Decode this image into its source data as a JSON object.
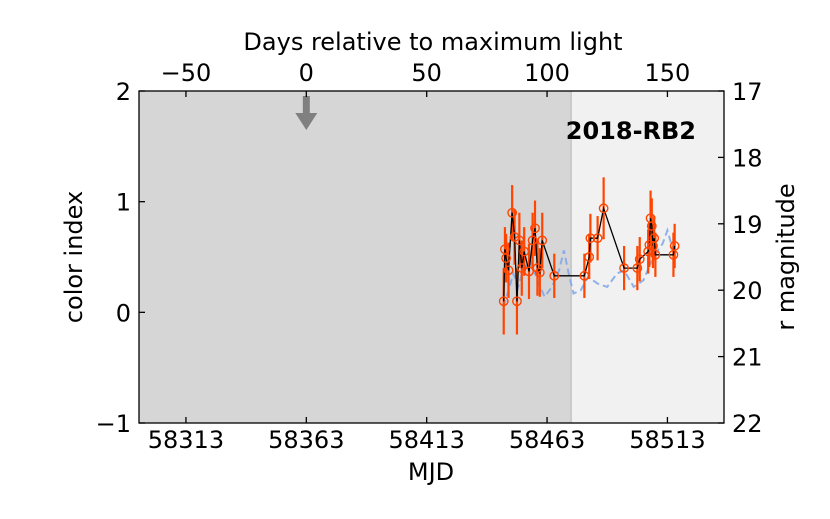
{
  "chart_data": {
    "type": "scatter",
    "title": "2018-RB2",
    "xlabel": "MJD",
    "ylabel": "color index",
    "top_xlabel": "Days relative to maximum light",
    "right_ylabel": "r magnitude",
    "xlim": [
      58293.5,
      58536.5
    ],
    "ylim": [
      -1,
      2
    ],
    "right_ylim": [
      22,
      17
    ],
    "top_xlim": [
      -69.5,
      173.5
    ],
    "x_ticks": [
      58313,
      58363,
      58413,
      58463,
      58513
    ],
    "y_ticks": [
      -1,
      0,
      1,
      2
    ],
    "right_y_ticks": [
      17,
      18,
      19,
      20,
      21,
      22
    ],
    "top_x_ticks": [
      -50,
      0,
      50,
      100,
      150
    ],
    "maximum_light_mjd": 58363,
    "shaded_region_end_mjd": 58473,
    "shade_colors": {
      "dark": "#d6d6d6",
      "light": "#f1f1f1"
    },
    "series": [
      {
        "style": "markers with error bars joined by line",
        "marker_color": "#ff4500",
        "line_color": "#000000",
        "points": [
          {
            "x": 58445.0,
            "y": 0.1,
            "err": 0.3
          },
          {
            "x": 58445.5,
            "y": 0.57,
            "err": 0.2
          },
          {
            "x": 58446.0,
            "y": 0.49,
            "err": 0.22
          },
          {
            "x": 58447.0,
            "y": 0.38,
            "err": 0.25
          },
          {
            "x": 58448.5,
            "y": 0.9,
            "err": 0.25
          },
          {
            "x": 58449.5,
            "y": 0.68,
            "err": 0.25
          },
          {
            "x": 58450.5,
            "y": 0.1,
            "err": 0.3
          },
          {
            "x": 58451.5,
            "y": 0.65,
            "err": 0.25
          },
          {
            "x": 58452.5,
            "y": 0.4,
            "err": 0.25
          },
          {
            "x": 58453.5,
            "y": 0.55,
            "err": 0.22
          },
          {
            "x": 58455.5,
            "y": 0.37,
            "err": 0.25
          },
          {
            "x": 58457.0,
            "y": 0.65,
            "err": 0.25
          },
          {
            "x": 58458.0,
            "y": 0.76,
            "err": 0.25
          },
          {
            "x": 58459.0,
            "y": 0.4,
            "err": 0.25
          },
          {
            "x": 58460.0,
            "y": 0.36,
            "err": 0.22
          },
          {
            "x": 58461.0,
            "y": 0.65,
            "err": 0.25
          },
          {
            "x": 58466.0,
            "y": 0.33,
            "err": 0.2
          },
          {
            "x": 58478.5,
            "y": 0.33,
            "err": 0.2
          },
          {
            "x": 58480.5,
            "y": 0.5,
            "err": 0.2
          },
          {
            "x": 58481.0,
            "y": 0.67,
            "err": 0.22
          },
          {
            "x": 58484.0,
            "y": 0.67,
            "err": 0.2
          },
          {
            "x": 58486.5,
            "y": 0.94,
            "err": 0.28
          },
          {
            "x": 58495.0,
            "y": 0.4,
            "err": 0.2
          },
          {
            "x": 58500.5,
            "y": 0.4,
            "err": 0.2
          },
          {
            "x": 58501.5,
            "y": 0.48,
            "err": 0.2
          },
          {
            "x": 58505.0,
            "y": 0.55,
            "err": 0.2
          },
          {
            "x": 58505.5,
            "y": 0.61,
            "err": 0.2
          },
          {
            "x": 58506.0,
            "y": 0.85,
            "err": 0.25
          },
          {
            "x": 58506.5,
            "y": 0.78,
            "err": 0.25
          },
          {
            "x": 58507.0,
            "y": 0.6,
            "err": 0.2
          },
          {
            "x": 58507.5,
            "y": 0.67,
            "err": 0.2
          },
          {
            "x": 58508.0,
            "y": 0.52,
            "err": 0.2
          },
          {
            "x": 58515.5,
            "y": 0.52,
            "err": 0.2
          },
          {
            "x": 58516.0,
            "y": 0.6,
            "err": 0.2
          }
        ]
      },
      {
        "style": "dashed",
        "color": "#7ea6ea",
        "axis": "right",
        "points": [
          {
            "x": 58445.0,
            "y": 20.25
          },
          {
            "x": 58447.0,
            "y": 20.0
          },
          {
            "x": 58449.0,
            "y": 19.75
          },
          {
            "x": 58451.0,
            "y": 19.95
          },
          {
            "x": 58453.0,
            "y": 19.7
          },
          {
            "x": 58456.0,
            "y": 19.55
          },
          {
            "x": 58459.0,
            "y": 19.85
          },
          {
            "x": 58462.0,
            "y": 20.1
          },
          {
            "x": 58465.0,
            "y": 19.95
          },
          {
            "x": 58468.0,
            "y": 19.7
          },
          {
            "x": 58470.0,
            "y": 19.4
          },
          {
            "x": 58472.0,
            "y": 19.75
          },
          {
            "x": 58474.0,
            "y": 20.05
          },
          {
            "x": 58477.0,
            "y": 20.0
          },
          {
            "x": 58480.0,
            "y": 19.8
          },
          {
            "x": 58484.0,
            "y": 19.9
          },
          {
            "x": 58488.0,
            "y": 19.95
          },
          {
            "x": 58492.0,
            "y": 19.75
          },
          {
            "x": 58495.0,
            "y": 19.7
          },
          {
            "x": 58499.0,
            "y": 19.95
          },
          {
            "x": 58503.0,
            "y": 19.85
          },
          {
            "x": 58506.0,
            "y": 19.6
          },
          {
            "x": 58509.0,
            "y": 19.4
          },
          {
            "x": 58511.0,
            "y": 19.3
          },
          {
            "x": 58513.0,
            "y": 19.1
          },
          {
            "x": 58515.0,
            "y": 19.35
          },
          {
            "x": 58516.0,
            "y": 19.55
          }
        ]
      }
    ]
  }
}
